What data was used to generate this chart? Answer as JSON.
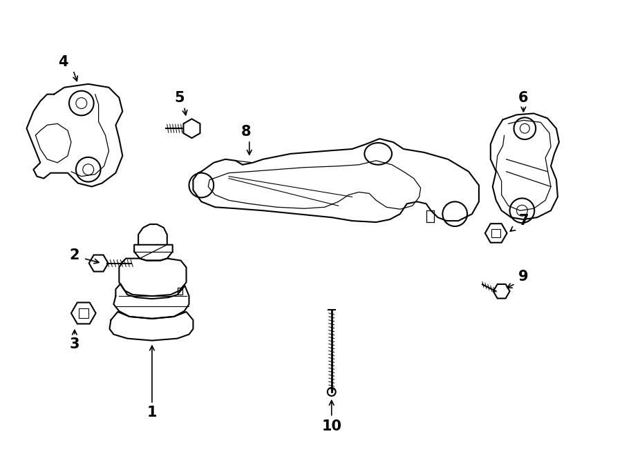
{
  "background_color": "#ffffff",
  "line_color": "#000000",
  "line_width": 1.5,
  "fig_width": 9.0,
  "fig_height": 6.61,
  "dpi": 100
}
